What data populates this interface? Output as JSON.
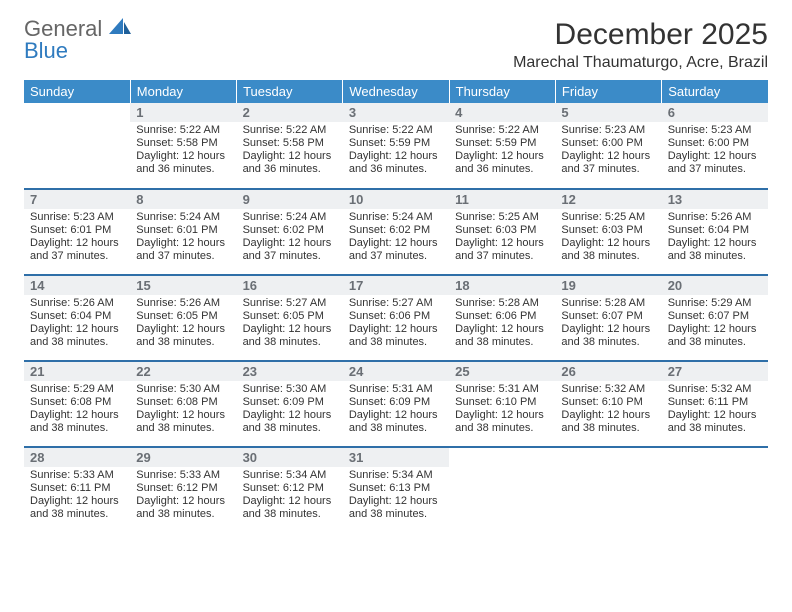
{
  "logo": {
    "word1": "General",
    "word2": "Blue"
  },
  "title": "December 2025",
  "location": "Marechal Thaumaturgo, Acre, Brazil",
  "colors": {
    "header_bg": "#3b8bc8",
    "header_text": "#ffffff",
    "row_divider": "#2f6fa8",
    "daynum_bg": "#eef0f2",
    "daynum_text": "#6a6f75",
    "body_text": "#333333",
    "logo_gray": "#666666",
    "logo_blue": "#2f7bbf",
    "page_bg": "#ffffff"
  },
  "typography": {
    "title_fontsize": 30,
    "location_fontsize": 16,
    "header_fontsize": 13,
    "daynum_fontsize": 13,
    "body_fontsize": 11
  },
  "weekday_headers": [
    "Sunday",
    "Monday",
    "Tuesday",
    "Wednesday",
    "Thursday",
    "Friday",
    "Saturday"
  ],
  "weeks": [
    [
      null,
      {
        "n": "1",
        "sr": "Sunrise: 5:22 AM",
        "ss": "Sunset: 5:58 PM",
        "dl": "Daylight: 12 hours and 36 minutes."
      },
      {
        "n": "2",
        "sr": "Sunrise: 5:22 AM",
        "ss": "Sunset: 5:58 PM",
        "dl": "Daylight: 12 hours and 36 minutes."
      },
      {
        "n": "3",
        "sr": "Sunrise: 5:22 AM",
        "ss": "Sunset: 5:59 PM",
        "dl": "Daylight: 12 hours and 36 minutes."
      },
      {
        "n": "4",
        "sr": "Sunrise: 5:22 AM",
        "ss": "Sunset: 5:59 PM",
        "dl": "Daylight: 12 hours and 36 minutes."
      },
      {
        "n": "5",
        "sr": "Sunrise: 5:23 AM",
        "ss": "Sunset: 6:00 PM",
        "dl": "Daylight: 12 hours and 37 minutes."
      },
      {
        "n": "6",
        "sr": "Sunrise: 5:23 AM",
        "ss": "Sunset: 6:00 PM",
        "dl": "Daylight: 12 hours and 37 minutes."
      }
    ],
    [
      {
        "n": "7",
        "sr": "Sunrise: 5:23 AM",
        "ss": "Sunset: 6:01 PM",
        "dl": "Daylight: 12 hours and 37 minutes."
      },
      {
        "n": "8",
        "sr": "Sunrise: 5:24 AM",
        "ss": "Sunset: 6:01 PM",
        "dl": "Daylight: 12 hours and 37 minutes."
      },
      {
        "n": "9",
        "sr": "Sunrise: 5:24 AM",
        "ss": "Sunset: 6:02 PM",
        "dl": "Daylight: 12 hours and 37 minutes."
      },
      {
        "n": "10",
        "sr": "Sunrise: 5:24 AM",
        "ss": "Sunset: 6:02 PM",
        "dl": "Daylight: 12 hours and 37 minutes."
      },
      {
        "n": "11",
        "sr": "Sunrise: 5:25 AM",
        "ss": "Sunset: 6:03 PM",
        "dl": "Daylight: 12 hours and 37 minutes."
      },
      {
        "n": "12",
        "sr": "Sunrise: 5:25 AM",
        "ss": "Sunset: 6:03 PM",
        "dl": "Daylight: 12 hours and 38 minutes."
      },
      {
        "n": "13",
        "sr": "Sunrise: 5:26 AM",
        "ss": "Sunset: 6:04 PM",
        "dl": "Daylight: 12 hours and 38 minutes."
      }
    ],
    [
      {
        "n": "14",
        "sr": "Sunrise: 5:26 AM",
        "ss": "Sunset: 6:04 PM",
        "dl": "Daylight: 12 hours and 38 minutes."
      },
      {
        "n": "15",
        "sr": "Sunrise: 5:26 AM",
        "ss": "Sunset: 6:05 PM",
        "dl": "Daylight: 12 hours and 38 minutes."
      },
      {
        "n": "16",
        "sr": "Sunrise: 5:27 AM",
        "ss": "Sunset: 6:05 PM",
        "dl": "Daylight: 12 hours and 38 minutes."
      },
      {
        "n": "17",
        "sr": "Sunrise: 5:27 AM",
        "ss": "Sunset: 6:06 PM",
        "dl": "Daylight: 12 hours and 38 minutes."
      },
      {
        "n": "18",
        "sr": "Sunrise: 5:28 AM",
        "ss": "Sunset: 6:06 PM",
        "dl": "Daylight: 12 hours and 38 minutes."
      },
      {
        "n": "19",
        "sr": "Sunrise: 5:28 AM",
        "ss": "Sunset: 6:07 PM",
        "dl": "Daylight: 12 hours and 38 minutes."
      },
      {
        "n": "20",
        "sr": "Sunrise: 5:29 AM",
        "ss": "Sunset: 6:07 PM",
        "dl": "Daylight: 12 hours and 38 minutes."
      }
    ],
    [
      {
        "n": "21",
        "sr": "Sunrise: 5:29 AM",
        "ss": "Sunset: 6:08 PM",
        "dl": "Daylight: 12 hours and 38 minutes."
      },
      {
        "n": "22",
        "sr": "Sunrise: 5:30 AM",
        "ss": "Sunset: 6:08 PM",
        "dl": "Daylight: 12 hours and 38 minutes."
      },
      {
        "n": "23",
        "sr": "Sunrise: 5:30 AM",
        "ss": "Sunset: 6:09 PM",
        "dl": "Daylight: 12 hours and 38 minutes."
      },
      {
        "n": "24",
        "sr": "Sunrise: 5:31 AM",
        "ss": "Sunset: 6:09 PM",
        "dl": "Daylight: 12 hours and 38 minutes."
      },
      {
        "n": "25",
        "sr": "Sunrise: 5:31 AM",
        "ss": "Sunset: 6:10 PM",
        "dl": "Daylight: 12 hours and 38 minutes."
      },
      {
        "n": "26",
        "sr": "Sunrise: 5:32 AM",
        "ss": "Sunset: 6:10 PM",
        "dl": "Daylight: 12 hours and 38 minutes."
      },
      {
        "n": "27",
        "sr": "Sunrise: 5:32 AM",
        "ss": "Sunset: 6:11 PM",
        "dl": "Daylight: 12 hours and 38 minutes."
      }
    ],
    [
      {
        "n": "28",
        "sr": "Sunrise: 5:33 AM",
        "ss": "Sunset: 6:11 PM",
        "dl": "Daylight: 12 hours and 38 minutes."
      },
      {
        "n": "29",
        "sr": "Sunrise: 5:33 AM",
        "ss": "Sunset: 6:12 PM",
        "dl": "Daylight: 12 hours and 38 minutes."
      },
      {
        "n": "30",
        "sr": "Sunrise: 5:34 AM",
        "ss": "Sunset: 6:12 PM",
        "dl": "Daylight: 12 hours and 38 minutes."
      },
      {
        "n": "31",
        "sr": "Sunrise: 5:34 AM",
        "ss": "Sunset: 6:13 PM",
        "dl": "Daylight: 12 hours and 38 minutes."
      },
      null,
      null,
      null
    ]
  ]
}
